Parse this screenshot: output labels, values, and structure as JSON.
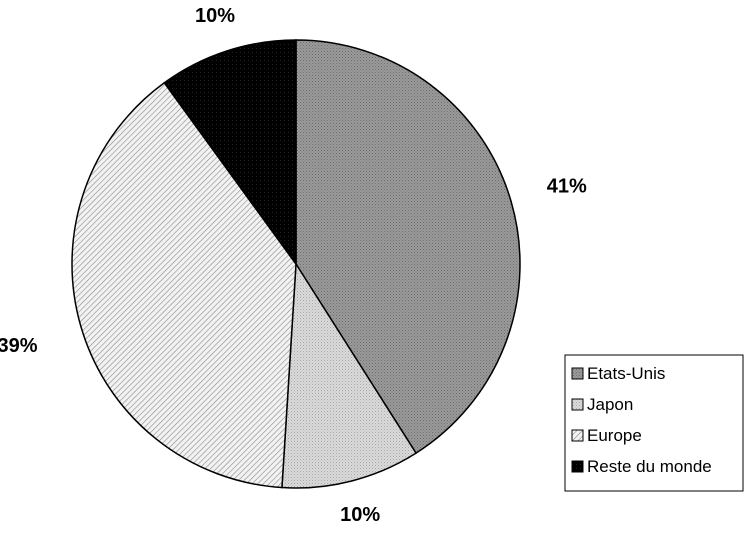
{
  "chart_data": {
    "type": "pie",
    "title": "",
    "categories": [
      "Etats-Unis",
      "Japon",
      "Europe",
      "Reste du monde"
    ],
    "values": [
      41,
      10,
      39,
      10
    ],
    "labels": [
      "41%",
      "10%",
      "39%",
      "10%"
    ],
    "start_angle_deg": 0,
    "direction": "clockwise",
    "legend_position": "bottom-right",
    "slice_styles": [
      {
        "fill": "#8c8c8c",
        "pattern": "dense-dots"
      },
      {
        "fill": "#cfcfcf",
        "pattern": "light-dots"
      },
      {
        "fill": "#e9e9e9",
        "pattern": "diagonal-lines"
      },
      {
        "fill": "#000000",
        "pattern": "solid"
      }
    ]
  }
}
